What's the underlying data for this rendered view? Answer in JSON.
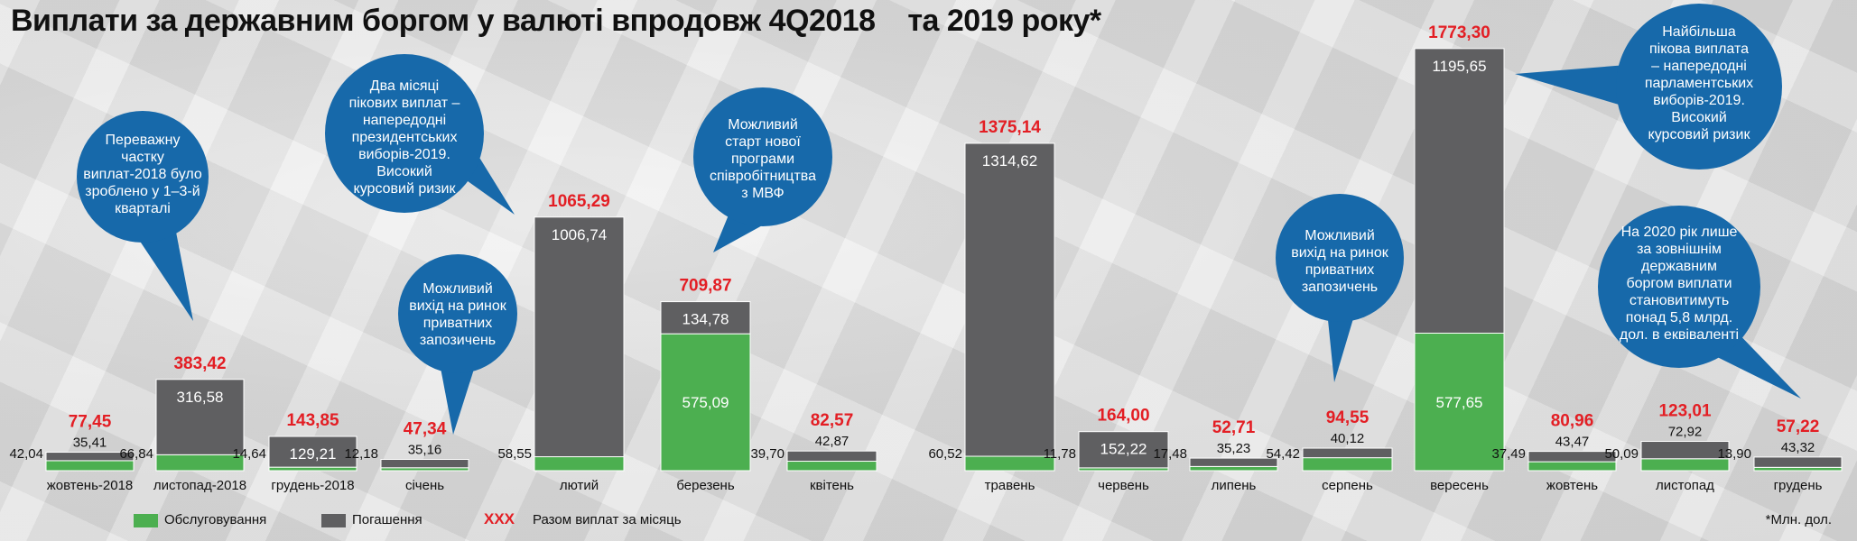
{
  "title": "Виплати за державним боргом у валюті впродовж 4Q2018    та 2019 року*",
  "note": "*Млн. дол.",
  "colors": {
    "service": "#4caf50",
    "repay": "#5f5f61",
    "total": "#e31e24",
    "bubble": "#1769aa"
  },
  "chart_data": {
    "type": "bar",
    "stacked": true,
    "categories": [
      "жовтень-2018",
      "листопад-2018",
      "грудень-2018",
      "січень",
      "лютий",
      "березень",
      "квітень",
      "травень",
      "червень",
      "липень",
      "серпень",
      "вересень",
      "жовтень",
      "листопад",
      "грудень"
    ],
    "series": [
      {
        "name": "Обслуговування",
        "values": [
          42.04,
          66.84,
          14.64,
          12.18,
          58.55,
          575.09,
          39.7,
          60.52,
          11.78,
          17.48,
          54.42,
          577.65,
          37.49,
          50.09,
          13.9
        ]
      },
      {
        "name": "Погашення",
        "values": [
          35.41,
          316.58,
          129.21,
          35.16,
          1006.74,
          134.78,
          42.87,
          1314.62,
          152.22,
          35.23,
          40.12,
          1195.65,
          43.47,
          72.92,
          43.32
        ]
      }
    ],
    "totals_name": "Разом виплат за місяць",
    "totals_marker": "XXX",
    "totals": [
      "77,45",
      "383,42",
      "143,85",
      "47,34",
      "1065,29",
      "709,87",
      "82,57",
      "1375,14",
      "164,00",
      "52,71",
      "94,55",
      "1773,30",
      "80,96",
      "123,01",
      "57,22"
    ],
    "service_labels": [
      "42,04",
      "66,84",
      "14,64",
      "12,18",
      "58,55",
      "575,09",
      "39,70",
      "60,52",
      "11,78",
      "17,48",
      "54,42",
      "577,65",
      "37,49",
      "50,09",
      "13,90"
    ],
    "repay_labels": [
      "35,41",
      "316,58",
      "129,21",
      "35,16",
      "1006,74",
      "134,78",
      "42,87",
      "1314,62",
      "152,22",
      "35,23",
      "40,12",
      "1195,65",
      "43,47",
      "72,92",
      "43,32"
    ]
  },
  "bubbles": [
    {
      "lines": [
        "Переважну",
        "частку",
        "виплат-2018 було",
        "зроблено  у 1–3-й",
        "кварталі"
      ]
    },
    {
      "lines": [
        "Два місяці",
        "пікових виплат –",
        "напередодні",
        "президентських",
        "виборів-2019.",
        "Високий",
        "курсовий ризик"
      ]
    },
    {
      "lines": [
        "Можливий",
        "вихід на ринок",
        "приватних",
        "запозичень"
      ]
    },
    {
      "lines": [
        "Можливий",
        "старт нової",
        "програми",
        "співробітництва",
        "з МВФ"
      ]
    },
    {
      "lines": [
        "Можливий",
        "вихід на ринок",
        "приватних",
        "запозичень"
      ]
    },
    {
      "lines": [
        "Найбільша",
        "пікова виплата",
        "– напередодні",
        "парламентських",
        "виборів-2019.",
        "Високий",
        "курсовий ризик"
      ]
    },
    {
      "lines": [
        "На 2020 рік лише",
        "за зовнішнім",
        "державним",
        "боргом виплати",
        "становитимуть",
        "понад 5,8 млрд.",
        "дол. в еквіваленті"
      ]
    }
  ]
}
